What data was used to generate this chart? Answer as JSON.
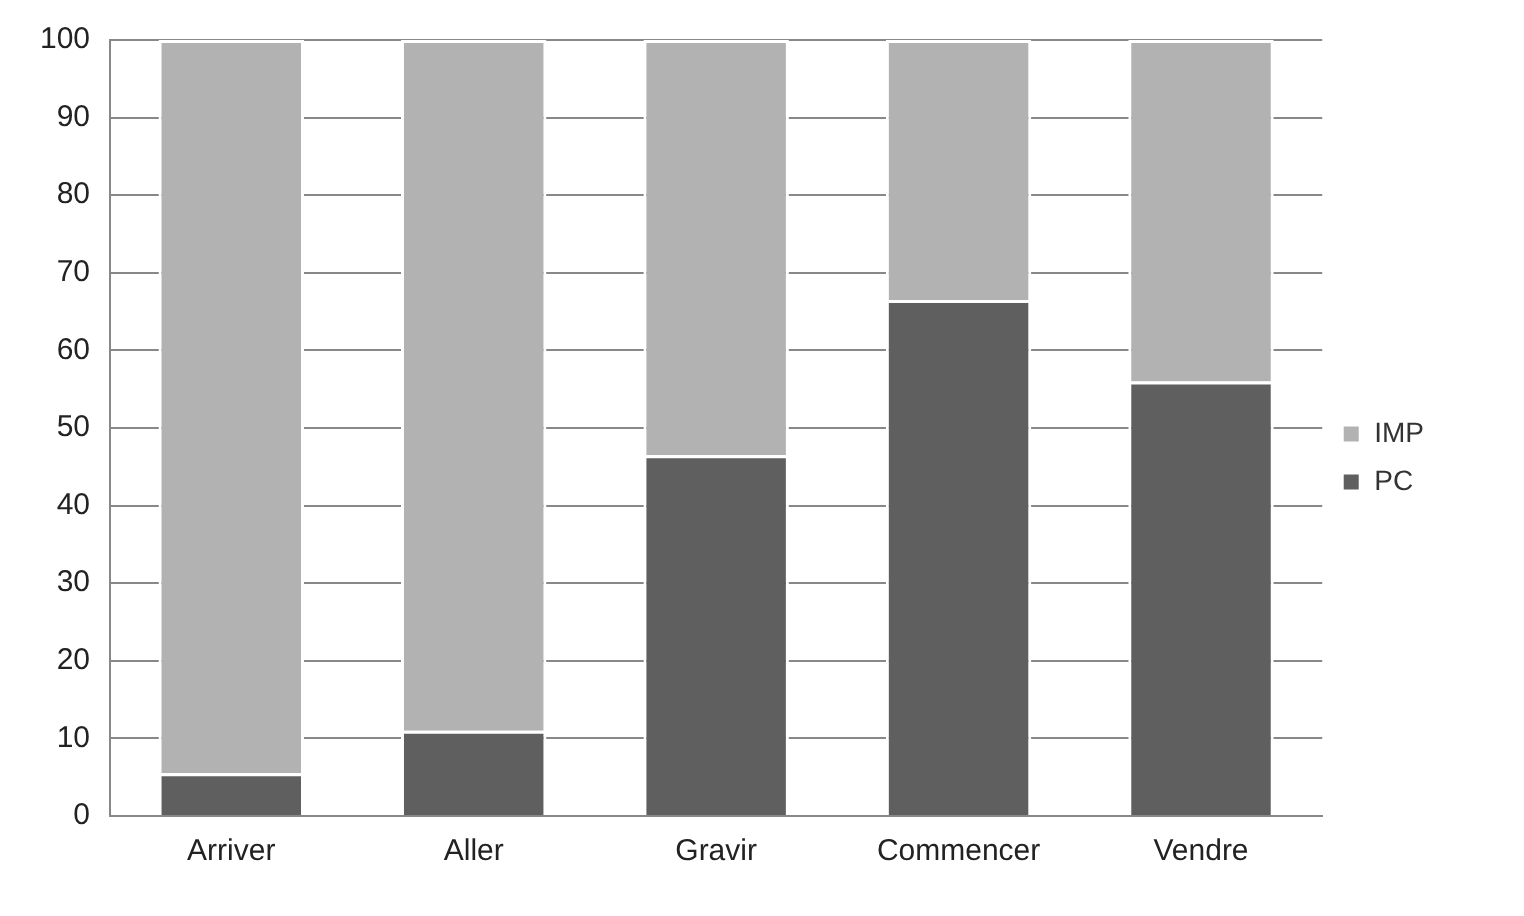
{
  "chart_data": {
    "type": "bar",
    "stacked": true,
    "categories": [
      "Arriver",
      "Aller",
      "Gravir",
      "Commencer",
      "Vendre"
    ],
    "series": [
      {
        "name": "PC",
        "color": "#5f5f5f",
        "values": [
          5.5,
          11,
          46.5,
          66.5,
          56
        ]
      },
      {
        "name": "IMP",
        "color": "#b2b2b2",
        "values": [
          94.5,
          89,
          53.5,
          33.5,
          44
        ]
      }
    ],
    "ylim": [
      0,
      100
    ],
    "yticks": [
      0,
      10,
      20,
      30,
      40,
      50,
      60,
      70,
      80,
      90,
      100
    ],
    "grid": "y",
    "legend": "right"
  }
}
